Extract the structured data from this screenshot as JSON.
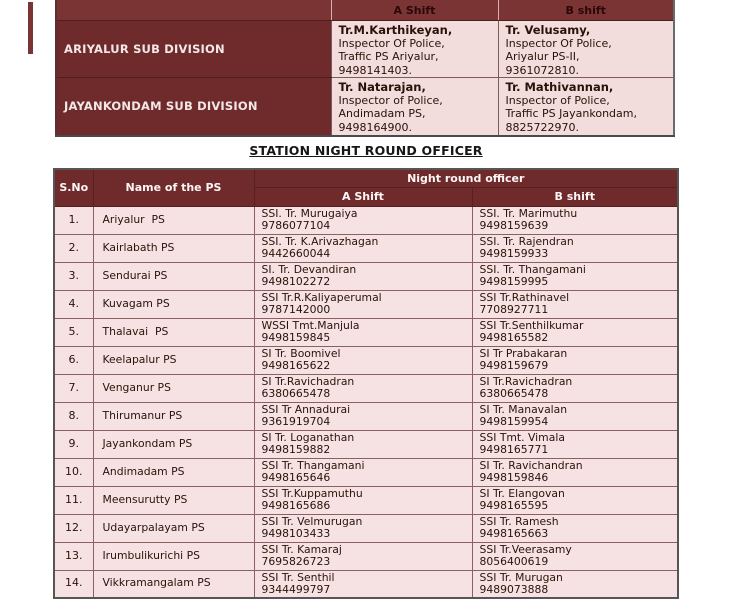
{
  "colors": {
    "maroon": "#6f2b2b",
    "maroon_light": "#7b3434",
    "pink": "#f3dcdc",
    "pink_light": "#f6e2e2",
    "ink": "#2a1208",
    "title_ink": "#161616"
  },
  "subdivision_table": {
    "header": {
      "a_shift": "A Shift",
      "b_shift": "B shift"
    },
    "rows": [
      {
        "division": "ARIYALUR SUB DIVISION",
        "a": {
          "name": "Tr.M.Karthikeyan,",
          "lines": [
            "Inspector Of Police,",
            "Traffic PS Ariyalur,",
            "9498141403."
          ]
        },
        "b": {
          "name": "Tr. Velusamy,",
          "lines": [
            "Inspector Of Police,",
            "Ariyalur PS-II,",
            "9361072810."
          ]
        }
      },
      {
        "division": "JAYANKONDAM SUB DIVISION",
        "a": {
          "name": "Tr. Natarajan,",
          "lines": [
            "Inspector of Police,",
            "Andimadam PS,",
            "9498164900."
          ]
        },
        "b": {
          "name": "Tr. Mathivannan,",
          "lines": [
            "Inspector of Police,",
            "Traffic PS Jayankondam,",
            "8825722970."
          ]
        }
      }
    ]
  },
  "title": "STATION NIGHT ROUND OFFICER",
  "station_table": {
    "headers": {
      "sno": "S.No",
      "name": "Name of the PS",
      "group": "Night round officer",
      "a": "A Shift",
      "b": "B shift"
    },
    "rows": [
      {
        "sno": "1.",
        "ps": "Ariyalur  PS",
        "a_name": "SSI. Tr. Murugaiya",
        "a_phone": "9786077104",
        "b_name": "SSI. Tr. Marimuthu",
        "b_phone": "9498159639"
      },
      {
        "sno": "2.",
        "ps": "Kairlabath PS",
        "a_name": "SSI. Tr. K.Arivazhagan",
        "a_phone": "9442660044",
        "b_name": "SSI. Tr. Rajendran",
        "b_phone": "9498159933"
      },
      {
        "sno": "3.",
        "ps": "Sendurai PS",
        "a_name": "SI. Tr. Devandiran",
        "a_phone": "9498102272",
        "b_name": "SSI. Tr. Thangamani",
        "b_phone": "9498159995"
      },
      {
        "sno": "4.",
        "ps": "Kuvagam PS",
        "a_name": "SSI Tr.R.Kaliyaperumal",
        "a_phone": "9787142000",
        "b_name": "SSI Tr.Rathinavel",
        "b_phone": "7708927711"
      },
      {
        "sno": "5.",
        "ps": "Thalavai  PS",
        "a_name": "WSSI Tmt.Manjula",
        "a_phone": "9498159845",
        "b_name": "SSI Tr.Senthilkumar",
        "b_phone": "9498165582"
      },
      {
        "sno": "6.",
        "ps": "Keelapalur PS",
        "a_name": "SI Tr. Boomivel",
        "a_phone": "9498165622",
        "b_name": "SI Tr Prabakaran",
        "b_phone": "9498159679"
      },
      {
        "sno": "7.",
        "ps": "Venganur PS",
        "a_name": "SI Tr.Ravichadran",
        "a_phone": "6380665478",
        "b_name": "SI Tr.Ravichadran",
        "b_phone": "6380665478"
      },
      {
        "sno": "8.",
        "ps": "Thirumanur PS",
        "a_name": "SSI Tr Annadurai",
        "a_phone": "9361919704",
        "b_name": "SI Tr. Manavalan",
        "b_phone": "9498159954"
      },
      {
        "sno": "9.",
        "ps": "Jayankondam PS",
        "a_name": "SI Tr. Loganathan",
        "a_phone": "9498159882",
        "b_name": "SSI Tmt. Vimala",
        "b_phone": "9498165771"
      },
      {
        "sno": "10.",
        "ps": "Andimadam PS",
        "a_name": "SSI Tr. Thangamani",
        "a_phone": "9498165646",
        "b_name": "SI Tr. Ravichandran",
        "b_phone": "9498159846"
      },
      {
        "sno": "11.",
        "ps": "Meensurutty PS",
        "a_name": "SSI Tr.Kuppamuthu",
        "a_phone": "9498165686",
        "b_name": "SI Tr. Elangovan",
        "b_phone": "9498165595"
      },
      {
        "sno": "12.",
        "ps": "Udayarpalayam PS",
        "a_name": "SSI Tr. Velmurugan",
        "a_phone": "9498103433",
        "b_name": "SSI Tr. Ramesh",
        "b_phone": "9498165663"
      },
      {
        "sno": "13.",
        "ps": "Irumbulikurichi PS",
        "a_name": "SSI Tr. Kamaraj",
        "a_phone": "7695826723",
        "b_name": "SSI Tr.Veerasamy",
        "b_phone": "8056400619"
      },
      {
        "sno": "14.",
        "ps": "Vikkramangalam PS",
        "a_name": "SSI Tr. Senthil",
        "a_phone": "9344499797",
        "b_name": "SSI Tr. Murugan",
        "b_phone": "9489073888"
      }
    ]
  }
}
